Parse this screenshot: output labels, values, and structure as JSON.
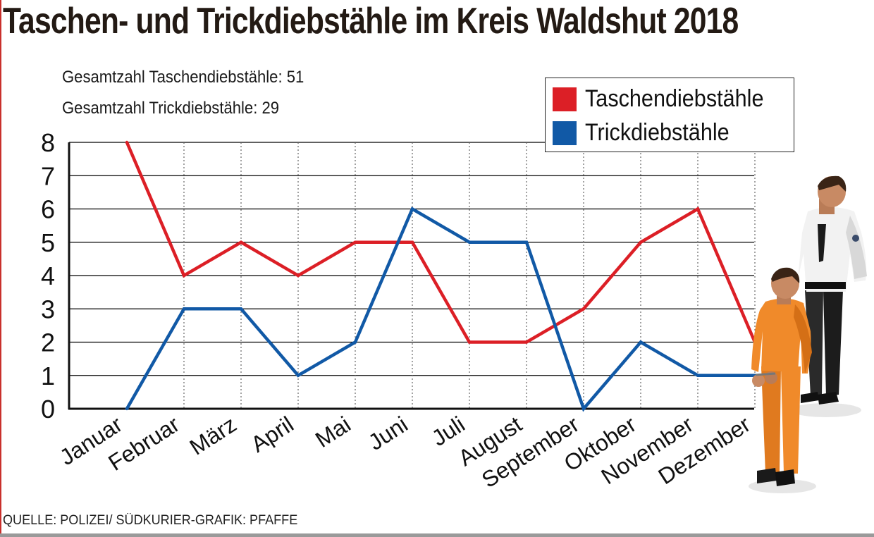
{
  "title": "Taschen- und Trickdiebstähle im Kreis Waldshut 2018",
  "summary": {
    "line1": "Gesamtzahl Taschendiebstähle: 51",
    "line2": "Gesamtzahl Trickdiebstähle: 29"
  },
  "source": "QUELLE: POLIZEI/ SÜDKURIER-GRAFIK: PFAFFE",
  "colors": {
    "taschen": "#dc1f26",
    "trick": "#1159a6",
    "grid": "#000000"
  },
  "chart_data": {
    "type": "line",
    "categories": [
      "Januar",
      "Februar",
      "März",
      "April",
      "Mai",
      "Juni",
      "Juli",
      "August",
      "September",
      "Oktober",
      "November",
      "Dezember"
    ],
    "series": [
      {
        "name": "Taschendiebstähle",
        "values": [
          8,
          4,
          5,
          4,
          5,
          5,
          2,
          2,
          3,
          5,
          6,
          2
        ]
      },
      {
        "name": "Trickdiebstähle",
        "values": [
          0,
          3,
          3,
          1,
          2,
          6,
          5,
          5,
          0,
          2,
          1,
          1
        ]
      }
    ],
    "yticks": [
      "0",
      "1",
      "2",
      "3",
      "4",
      "5",
      "6",
      "7",
      "8"
    ],
    "ylim": [
      0,
      8
    ],
    "grid": true,
    "legend_position": "top-right",
    "illustration": "police officer escorting handcuffed prisoner"
  }
}
